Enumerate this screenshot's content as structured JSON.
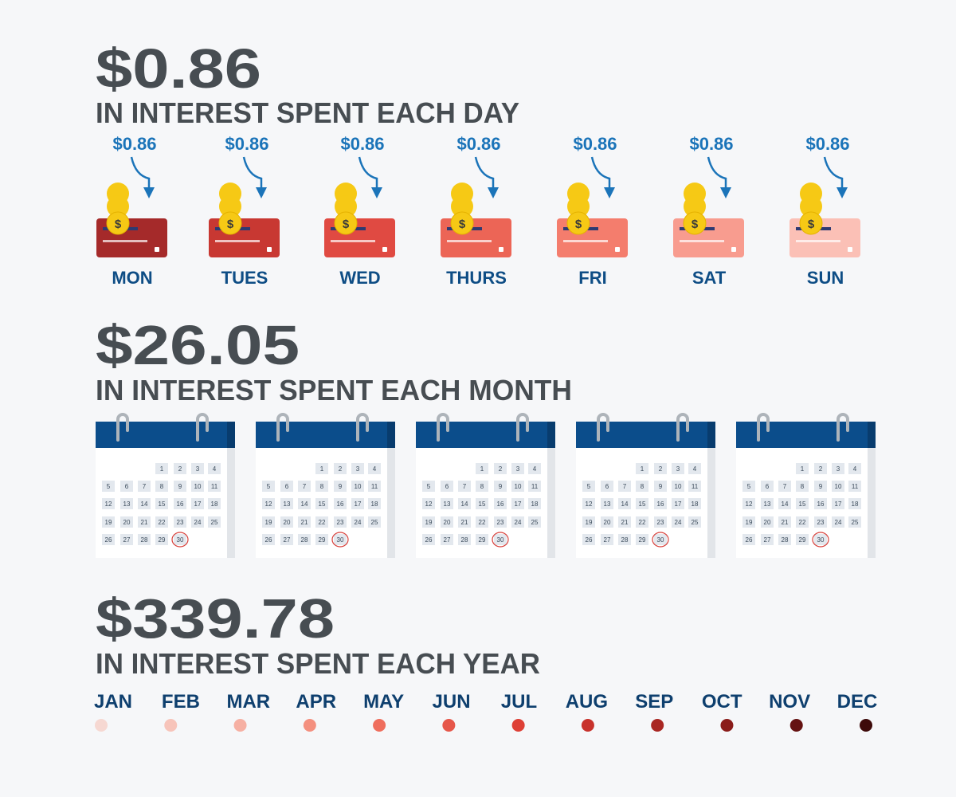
{
  "day": {
    "total": "$0.86",
    "caption": "IN INTEREST SPENT EACH DAY",
    "coin_symbol": "$",
    "items": [
      {
        "amount": "$0.86",
        "label": "MON"
      },
      {
        "amount": "$0.86",
        "label": "TUES"
      },
      {
        "amount": "$0.86",
        "label": "WED"
      },
      {
        "amount": "$0.86",
        "label": "THURS"
      },
      {
        "amount": "$0.86",
        "label": "FRI"
      },
      {
        "amount": "$0.86",
        "label": "SAT"
      },
      {
        "amount": "$0.86",
        "label": "SUN"
      }
    ]
  },
  "month": {
    "total": "$26.05",
    "caption": "IN INTEREST SPENT EACH MONTH",
    "calendars": [
      {
        "days": [
          1,
          2,
          3,
          4,
          5,
          6,
          7,
          8,
          9,
          10,
          11,
          12,
          13,
          14,
          15,
          16,
          17,
          18,
          19,
          20,
          21,
          22,
          23,
          24,
          25,
          26,
          27,
          28,
          29,
          30
        ]
      },
      {
        "days": [
          1,
          2,
          3,
          4,
          5,
          6,
          7,
          8,
          9,
          10,
          11,
          12,
          13,
          14,
          15,
          16,
          17,
          18,
          19,
          20,
          21,
          22,
          23,
          24,
          25,
          26,
          27,
          28,
          29,
          30
        ]
      },
      {
        "days": [
          1,
          2,
          3,
          4,
          5,
          6,
          7,
          8,
          9,
          10,
          11,
          12,
          13,
          14,
          15,
          16,
          17,
          18,
          19,
          20,
          21,
          22,
          23,
          24,
          25,
          26,
          27,
          28,
          29,
          30
        ]
      },
      {
        "days": [
          1,
          2,
          3,
          4,
          5,
          6,
          7,
          8,
          9,
          10,
          11,
          12,
          13,
          14,
          15,
          16,
          17,
          18,
          19,
          20,
          21,
          22,
          23,
          24,
          25,
          26,
          27,
          28,
          29,
          30
        ]
      },
      {
        "days": [
          1,
          2,
          3,
          4,
          5,
          6,
          7,
          8,
          9,
          10,
          11,
          12,
          13,
          14,
          15,
          16,
          17,
          18,
          19,
          20,
          21,
          22,
          23,
          24,
          25,
          26,
          27,
          28,
          29,
          30
        ]
      }
    ]
  },
  "year": {
    "total": "$339.78",
    "caption": "IN INTEREST SPENT EACH YEAR",
    "months": [
      "JAN",
      "FEB",
      "MAR",
      "APR",
      "MAY",
      "JUN",
      "JUL",
      "AUG",
      "SEP",
      "OCT",
      "NOV",
      "DEC"
    ]
  }
}
